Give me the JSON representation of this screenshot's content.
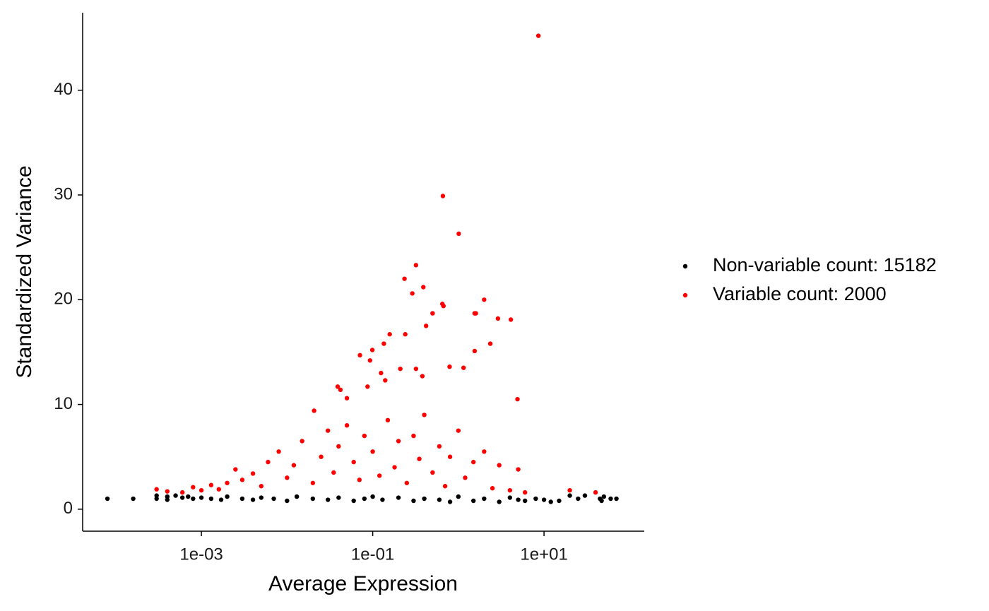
{
  "chart_data": {
    "type": "scatter",
    "x_label": "Average Expression",
    "y_label": "Standardized Variance",
    "xscale": "log",
    "xlim": [
      4.11e-05,
      148
    ],
    "ylim": [
      -2.1,
      47.4
    ],
    "xticks": [
      {
        "value": 0.001,
        "label": "1e-03"
      },
      {
        "value": 0.1,
        "label": "1e-01"
      },
      {
        "value": 10,
        "label": "1e+01"
      }
    ],
    "yticks": [
      0,
      10,
      20,
      30,
      40
    ],
    "legend_position": "right",
    "series": [
      {
        "name": "Non-variable count: 15182",
        "color": "#000000",
        "x": [
          8e-05,
          0.00016,
          0.0003,
          0.0003,
          0.0004,
          0.0004,
          0.0005,
          0.0006,
          0.0007,
          0.0008,
          0.001,
          0.0013,
          0.0017,
          0.002,
          0.003,
          0.004,
          0.005,
          0.007,
          0.01,
          0.013,
          0.02,
          0.03,
          0.04,
          0.06,
          0.08,
          0.1,
          0.13,
          0.2,
          0.3,
          0.4,
          0.6,
          0.8,
          1.0,
          1.5,
          2,
          3,
          4,
          5,
          6,
          8,
          10,
          12,
          15,
          20,
          25,
          30,
          45,
          47,
          50,
          60,
          70
        ],
        "values": [
          1.0,
          1.0,
          1.0,
          1.3,
          1.2,
          0.9,
          1.3,
          1.1,
          1.2,
          1.0,
          1.1,
          1.0,
          0.9,
          1.2,
          1.0,
          0.9,
          1.1,
          1.0,
          0.8,
          1.2,
          1.0,
          0.9,
          1.1,
          0.8,
          1.0,
          1.2,
          0.9,
          1.1,
          0.8,
          1.0,
          0.9,
          0.7,
          1.2,
          0.8,
          1.0,
          0.7,
          1.1,
          0.9,
          0.8,
          1.0,
          0.9,
          0.7,
          0.8,
          1.3,
          1.0,
          1.3,
          1.0,
          0.8,
          1.2,
          1.0,
          1.0
        ]
      },
      {
        "name": "Variable count: 2000",
        "color": "#ff0000",
        "x": [
          8.6,
          0.66,
          1.01,
          0.32,
          0.235,
          0.39,
          0.29,
          2.0,
          0.65,
          0.67,
          0.5,
          1.55,
          1.6,
          2.9,
          4.1,
          0.42,
          0.158,
          0.24,
          2.36,
          0.135,
          0.071,
          0.099,
          1.55,
          0.093,
          1.15,
          0.79,
          0.32,
          0.21,
          0.125,
          0.14,
          0.38,
          4.9,
          0.0207,
          0.039,
          0.042,
          0.05,
          0.087,
          0.0003,
          0.0004,
          0.0006,
          0.0008,
          0.001,
          0.0013,
          0.0016,
          0.002,
          0.0025,
          0.003,
          0.004,
          0.005,
          0.006,
          0.008,
          0.01,
          0.012,
          0.015,
          0.02,
          0.025,
          0.03,
          0.035,
          0.04,
          0.05,
          0.06,
          0.07,
          0.08,
          0.1,
          0.12,
          0.15,
          0.18,
          0.2,
          0.25,
          0.3,
          0.35,
          0.4,
          0.5,
          0.6,
          0.7,
          0.8,
          1.0,
          1.2,
          1.5,
          2.0,
          2.5,
          3,
          4,
          5,
          6,
          20,
          40
        ],
        "values": [
          45.2,
          29.9,
          26.3,
          23.3,
          22.0,
          21.2,
          20.6,
          20.0,
          19.6,
          19.4,
          18.7,
          18.7,
          18.7,
          18.2,
          18.1,
          17.5,
          16.7,
          16.7,
          15.8,
          15.8,
          14.7,
          15.2,
          15.1,
          14.2,
          13.5,
          13.6,
          13.4,
          13.4,
          13.0,
          12.3,
          12.7,
          10.5,
          9.4,
          11.7,
          11.4,
          10.6,
          11.7,
          1.9,
          1.7,
          1.6,
          2.1,
          1.8,
          2.3,
          1.9,
          2.5,
          3.8,
          2.8,
          3.4,
          2.2,
          4.5,
          5.5,
          3.0,
          4.2,
          6.5,
          2.5,
          5.0,
          7.5,
          3.5,
          6.0,
          8.0,
          4.5,
          2.8,
          7.0,
          5.5,
          3.2,
          8.5,
          4.0,
          6.5,
          2.5,
          7.0,
          4.8,
          9.0,
          3.5,
          6.0,
          2.2,
          5.0,
          7.5,
          3.0,
          4.5,
          5.5,
          2.0,
          4.2,
          1.8,
          3.8,
          1.6,
          1.8,
          1.6
        ]
      }
    ]
  }
}
